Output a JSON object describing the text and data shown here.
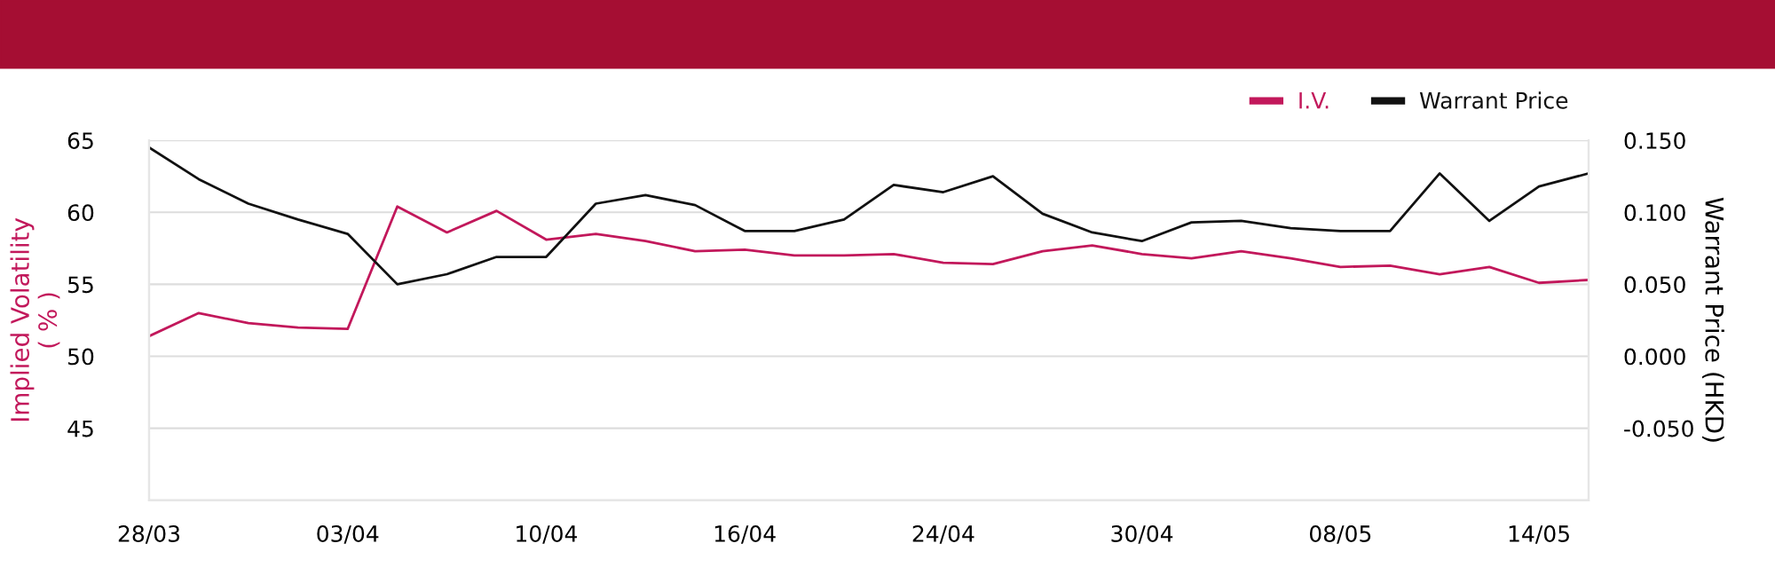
{
  "chart_data": {
    "type": "line",
    "categories": [
      "28/03",
      null,
      null,
      null,
      "03/04",
      null,
      null,
      null,
      "10/04",
      null,
      null,
      null,
      "16/04",
      null,
      null,
      null,
      "24/04",
      null,
      null,
      null,
      "30/04",
      null,
      null,
      null,
      "08/05",
      null,
      null,
      null,
      "14/05",
      null
    ],
    "series": [
      {
        "name": "I.V.",
        "color": "#c2185b",
        "values": [
          51.4,
          53.0,
          52.3,
          52.0,
          51.9,
          60.4,
          58.6,
          60.1,
          58.1,
          58.5,
          58.0,
          57.3,
          57.4,
          57.0,
          57.0,
          57.1,
          56.5,
          56.4,
          57.3,
          57.7,
          57.1,
          56.8,
          57.3,
          56.8,
          56.2,
          56.3,
          55.7,
          56.2,
          55.1,
          55.3
        ]
      },
      {
        "name": "Warrant Price",
        "color": "#111111",
        "axis": "y2",
        "values": [
          0.145,
          0.123,
          0.106,
          0.095,
          0.085,
          0.05,
          0.057,
          0.069,
          0.069,
          0.106,
          0.112,
          0.105,
          0.087,
          0.087,
          0.095,
          0.119,
          0.114,
          0.125,
          0.099,
          0.086,
          0.08,
          0.093,
          0.094,
          0.089,
          0.087,
          0.087,
          0.127,
          0.094,
          0.118,
          0.127
        ]
      }
    ],
    "ylabel": "Implied Volatility\n( % )",
    "y2label": "Warrant Price (HKD)",
    "ylim": [
      40,
      65
    ],
    "yticks": [
      {
        "value": 40,
        "label": null
      },
      45,
      50,
      55,
      60,
      65
    ],
    "y2lim": [
      -0.1,
      0.15
    ],
    "y2ticks": [
      {
        "value": -0.1,
        "label": null
      },
      {
        "value": -0.05,
        "label": "-0.050"
      },
      {
        "value": 0,
        "label": "0.000"
      },
      {
        "value": 0.05,
        "label": "0.050"
      },
      {
        "value": 0.1,
        "label": "0.100"
      },
      {
        "value": 0.15,
        "label": "0.150"
      }
    ],
    "grid": "y",
    "legend": "top right",
    "marker": "none",
    "line_style": "solid"
  }
}
